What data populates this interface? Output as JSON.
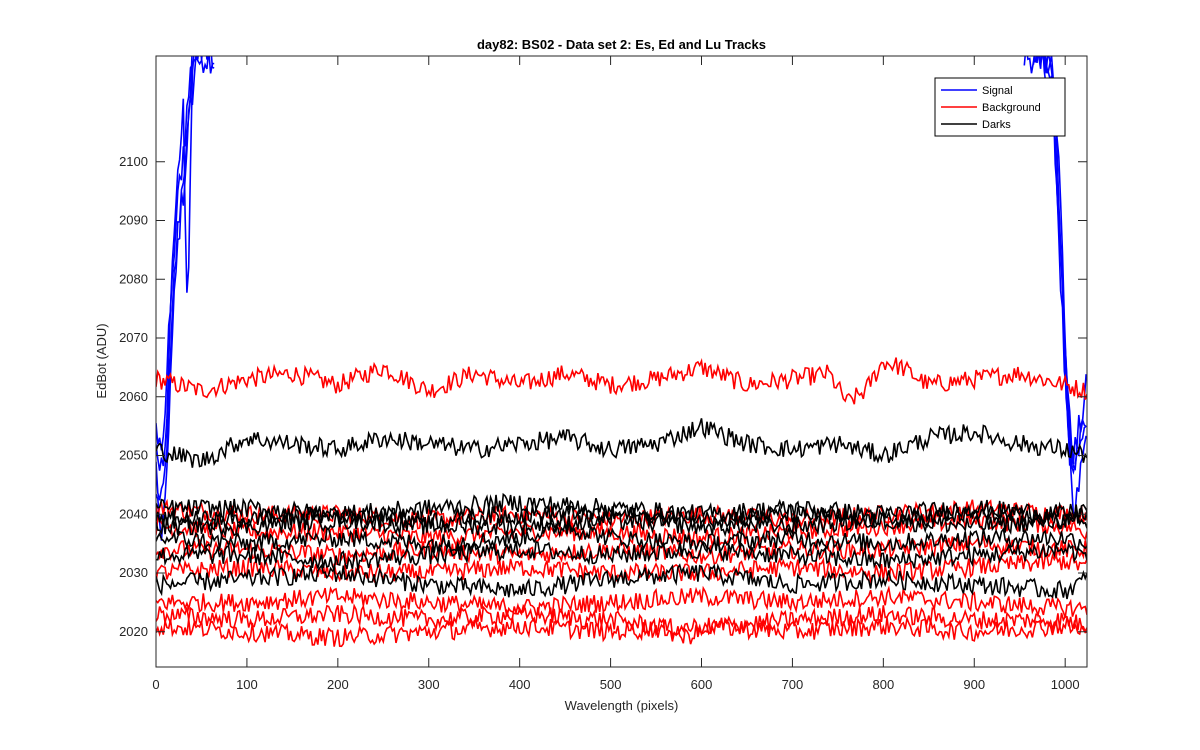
{
  "chart_data": {
    "type": "line",
    "title": "day82: BS02 - Data set 2: Es, Ed and Lu Tracks",
    "xlabel": "Wavelength (pixels)",
    "ylabel": "EdBot (ADU)",
    "xlim": [
      0,
      1024
    ],
    "ylim": [
      2014,
      2118
    ],
    "xticks": [
      0,
      100,
      200,
      300,
      400,
      500,
      600,
      700,
      800,
      900,
      1000
    ],
    "yticks": [
      2020,
      2030,
      2040,
      2050,
      2060,
      2070,
      2080,
      2090,
      2100
    ],
    "grid": false,
    "legend": {
      "position": "top-right",
      "entries": [
        {
          "label": "Signal",
          "color": "#0000ff"
        },
        {
          "label": "Background",
          "color": "#ff0000"
        },
        {
          "label": "Darks",
          "color": "#000000"
        }
      ]
    },
    "series_groups": [
      {
        "name": "Signal",
        "color": "#0000ff",
        "series": [
          {
            "x": [
              0,
              5,
              10,
              15,
              20,
              25,
              30,
              35,
              40,
              45,
              50,
              55,
              60,
              65
            ],
            "y": [
              2048,
              2040,
              2047,
              2062,
              2080,
              2090,
              2098,
              2104,
              2112,
              2118,
              2118,
              2118,
              2118,
              2118
            ]
          },
          {
            "x": [
              0,
              5,
              10,
              15,
              20,
              25,
              30,
              35,
              40,
              45,
              50,
              55,
              60,
              65
            ],
            "y": [
              2053,
              2046,
              2050,
              2070,
              2085,
              2095,
              2102,
              2110,
              2118,
              2118,
              2118,
              2118,
              2118,
              2118
            ]
          },
          {
            "x": [
              0,
              5,
              10,
              15,
              20,
              25,
              30,
              35,
              40,
              45
            ],
            "y": [
              2056,
              2050,
              2055,
              2075,
              2088,
              2100,
              2108,
              2070,
              2118,
              2118
            ]
          },
          {
            "x": [
              0,
              5,
              10,
              15,
              20,
              25,
              30,
              35,
              40
            ],
            "y": [
              2044,
              2036,
              2040,
              2060,
              2076,
              2088,
              2095,
              2104,
              2118
            ]
          },
          {
            "x": [
              955,
              965,
              975,
              985,
              990,
              995,
              1000,
              1005,
              1010,
              1015,
              1020,
              1024
            ],
            "y": [
              2118,
              2118,
              2118,
              2118,
              2105,
              2085,
              2065,
              2050,
              2048,
              2052,
              2055,
              2058
            ]
          },
          {
            "x": [
              955,
              965,
              975,
              985,
              990,
              995,
              1000,
              1005,
              1010,
              1015,
              1020,
              1024
            ],
            "y": [
              2118,
              2118,
              2118,
              2118,
              2110,
              2092,
              2070,
              2055,
              2050,
              2054,
              2058,
              2062
            ]
          },
          {
            "x": [
              965,
              975,
              985,
              992,
              998,
              1003,
              1008,
              1013,
              1018,
              1024
            ],
            "y": [
              2118,
              2118,
              2112,
              2095,
              2075,
              2058,
              2047,
              2050,
              2053,
              2056
            ]
          },
          {
            "x": [
              975,
              985,
              990,
              995,
              1000,
              1005,
              1010,
              1015,
              1020,
              1024
            ],
            "y": [
              2118,
              2112,
              2100,
              2080,
              2062,
              2048,
              2038,
              2045,
              2050,
              2054
            ]
          }
        ]
      },
      {
        "name": "Background",
        "color": "#ff0000",
        "series": [
          {
            "x": [
              0,
              50,
              100,
              150,
              200,
              250,
              300,
              350,
              400,
              450,
              500,
              550,
              600,
              650,
              700,
              740,
              760,
              780,
              800,
              820,
              850,
              900,
              950,
              1000,
              1024
            ],
            "y": [
              2063,
              2061,
              2063,
              2064,
              2062,
              2065,
              2061,
              2064,
              2062,
              2064,
              2062,
              2063,
              2065,
              2062,
              2063,
              2064,
              2059,
              2061,
              2066,
              2065,
              2062,
              2063,
              2064,
              2062,
              2061
            ]
          },
          {
            "x": [
              0,
              100,
              200,
              300,
              400,
              500,
              600,
              700,
              800,
              900,
              1000,
              1024
            ],
            "y": [
              2041,
              2040,
              2040,
              2039,
              2040,
              2039,
              2040,
              2039,
              2040,
              2041,
              2040,
              2040
            ]
          },
          {
            "x": [
              0,
              100,
              200,
              300,
              400,
              500,
              600,
              700,
              800,
              900,
              1000,
              1024
            ],
            "y": [
              2038,
              2037,
              2037,
              2036,
              2037,
              2037,
              2036,
              2037,
              2038,
              2039,
              2038,
              2037
            ]
          },
          {
            "x": [
              0,
              100,
              200,
              300,
              400,
              500,
              600,
              700,
              800,
              900,
              1000,
              1024
            ],
            "y": [
              2034,
              2034,
              2033,
              2034,
              2033,
              2034,
              2033,
              2034,
              2034,
              2035,
              2034,
              2034
            ]
          },
          {
            "x": [
              0,
              100,
              200,
              300,
              400,
              500,
              600,
              700,
              800,
              900,
              1000,
              1024
            ],
            "y": [
              2030,
              2031,
              2030,
              2030,
              2031,
              2030,
              2030,
              2031,
              2030,
              2031,
              2032,
              2031
            ]
          },
          {
            "x": [
              0,
              100,
              200,
              300,
              400,
              500,
              600,
              700,
              800,
              900,
              1000,
              1024
            ],
            "y": [
              2025,
              2025,
              2026,
              2025,
              2024,
              2025,
              2026,
              2025,
              2026,
              2025,
              2024,
              2024
            ]
          },
          {
            "x": [
              0,
              100,
              200,
              300,
              400,
              500,
              550,
              580,
              620,
              700,
              800,
              900,
              1000,
              1024
            ],
            "y": [
              2023,
              2022,
              2023,
              2022,
              2023,
              2022,
              2021,
              2019,
              2021,
              2022,
              2023,
              2022,
              2022,
              2021
            ]
          },
          {
            "x": [
              0,
              100,
              200,
              300,
              400,
              500,
              600,
              700,
              800,
              900,
              1000,
              1024
            ],
            "y": [
              2021,
              2020,
              2019,
              2020,
              2021,
              2020,
              2021,
              2020,
              2021,
              2020,
              2021,
              2020
            ]
          }
        ]
      },
      {
        "name": "Darks",
        "color": "#000000",
        "series": [
          {
            "x": [
              0,
              50,
              100,
              150,
              200,
              250,
              300,
              350,
              400,
              450,
              500,
              550,
              600,
              650,
              700,
              750,
              800,
              850,
              900,
              950,
              1000,
              1024
            ],
            "y": [
              2051,
              2049,
              2053,
              2052,
              2051,
              2053,
              2052,
              2051,
              2052,
              2053,
              2051,
              2052,
              2055,
              2052,
              2051,
              2052,
              2050,
              2053,
              2054,
              2052,
              2051,
              2050
            ]
          },
          {
            "x": [
              0,
              100,
              200,
              300,
              400,
              500,
              600,
              700,
              800,
              900,
              1000,
              1024
            ],
            "y": [
              2041,
              2041,
              2040,
              2041,
              2042,
              2041,
              2040,
              2041,
              2040,
              2041,
              2040,
              2041
            ]
          },
          {
            "x": [
              0,
              100,
              200,
              300,
              400,
              500,
              600,
              700,
              800,
              900,
              1000,
              1024
            ],
            "y": [
              2039,
              2039,
              2040,
              2039,
              2040,
              2040,
              2039,
              2040,
              2039,
              2040,
              2039,
              2040
            ]
          },
          {
            "x": [
              0,
              100,
              200,
              300,
              400,
              500,
              600,
              700,
              800,
              900,
              1000,
              1024
            ],
            "y": [
              2038,
              2038,
              2039,
              2038,
              2038,
              2039,
              2038,
              2038,
              2039,
              2038,
              2039,
              2038
            ]
          },
          {
            "x": [
              0,
              100,
              200,
              300,
              400,
              450,
              500,
              600,
              700,
              800,
              900,
              1000,
              1024
            ],
            "y": [
              2036,
              2035,
              2036,
              2035,
              2036,
              2038,
              2036,
              2035,
              2036,
              2035,
              2036,
              2036,
              2035
            ]
          },
          {
            "x": [
              0,
              100,
              200,
              300,
              400,
              500,
              600,
              700,
              800,
              900,
              1000,
              1024
            ],
            "y": [
              2033,
              2033,
              2032,
              2033,
              2034,
              2033,
              2034,
              2033,
              2032,
              2033,
              2034,
              2033
            ]
          },
          {
            "x": [
              0,
              100,
              200,
              300,
              400,
              500,
              600,
              700,
              800,
              900,
              1000,
              1024
            ],
            "y": [
              2028,
              2029,
              2030,
              2028,
              2027,
              2029,
              2030,
              2028,
              2029,
              2028,
              2027,
              2029
            ]
          }
        ]
      }
    ]
  }
}
